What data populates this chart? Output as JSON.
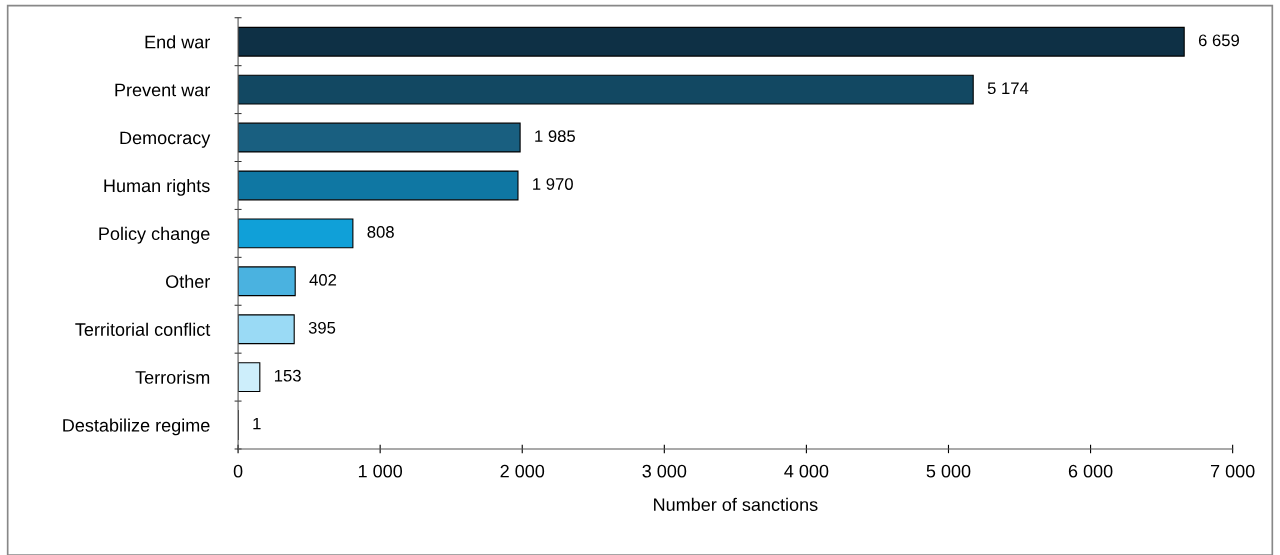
{
  "chart_data": {
    "type": "bar",
    "orientation": "horizontal",
    "xlabel": "Number of sanctions",
    "categories": [
      "End war",
      "Prevent war",
      "Democracy",
      "Human rights",
      "Policy change",
      "Other",
      "Territorial conflict",
      "Terrorism",
      "Destabilize regime"
    ],
    "values": [
      6659,
      5174,
      1985,
      1970,
      808,
      402,
      395,
      153,
      1
    ],
    "value_labels": [
      "6 659",
      "5 174",
      "1 985",
      "1 970",
      "808",
      "402",
      "395",
      "153",
      "1"
    ],
    "colors": [
      "#0e3045",
      "#124862",
      "#195f80",
      "#0f77a3",
      "#10a0d8",
      "#4ab2e0",
      "#9adaf5",
      "#cdeefb",
      "#1a1a1a"
    ],
    "xlim": [
      0,
      7000
    ],
    "xticks": [
      0,
      {
        "value": 1000,
        "label": "1 000"
      },
      {
        "value": 2000,
        "label": "2 000"
      },
      {
        "value": 3000,
        "label": "3 000"
      },
      {
        "value": 4000,
        "label": "4 000"
      },
      {
        "value": 5000,
        "label": "5 000"
      },
      {
        "value": 6000,
        "label": "6 000"
      },
      {
        "value": 7000,
        "label": "7 000"
      }
    ],
    "grid": false
  }
}
